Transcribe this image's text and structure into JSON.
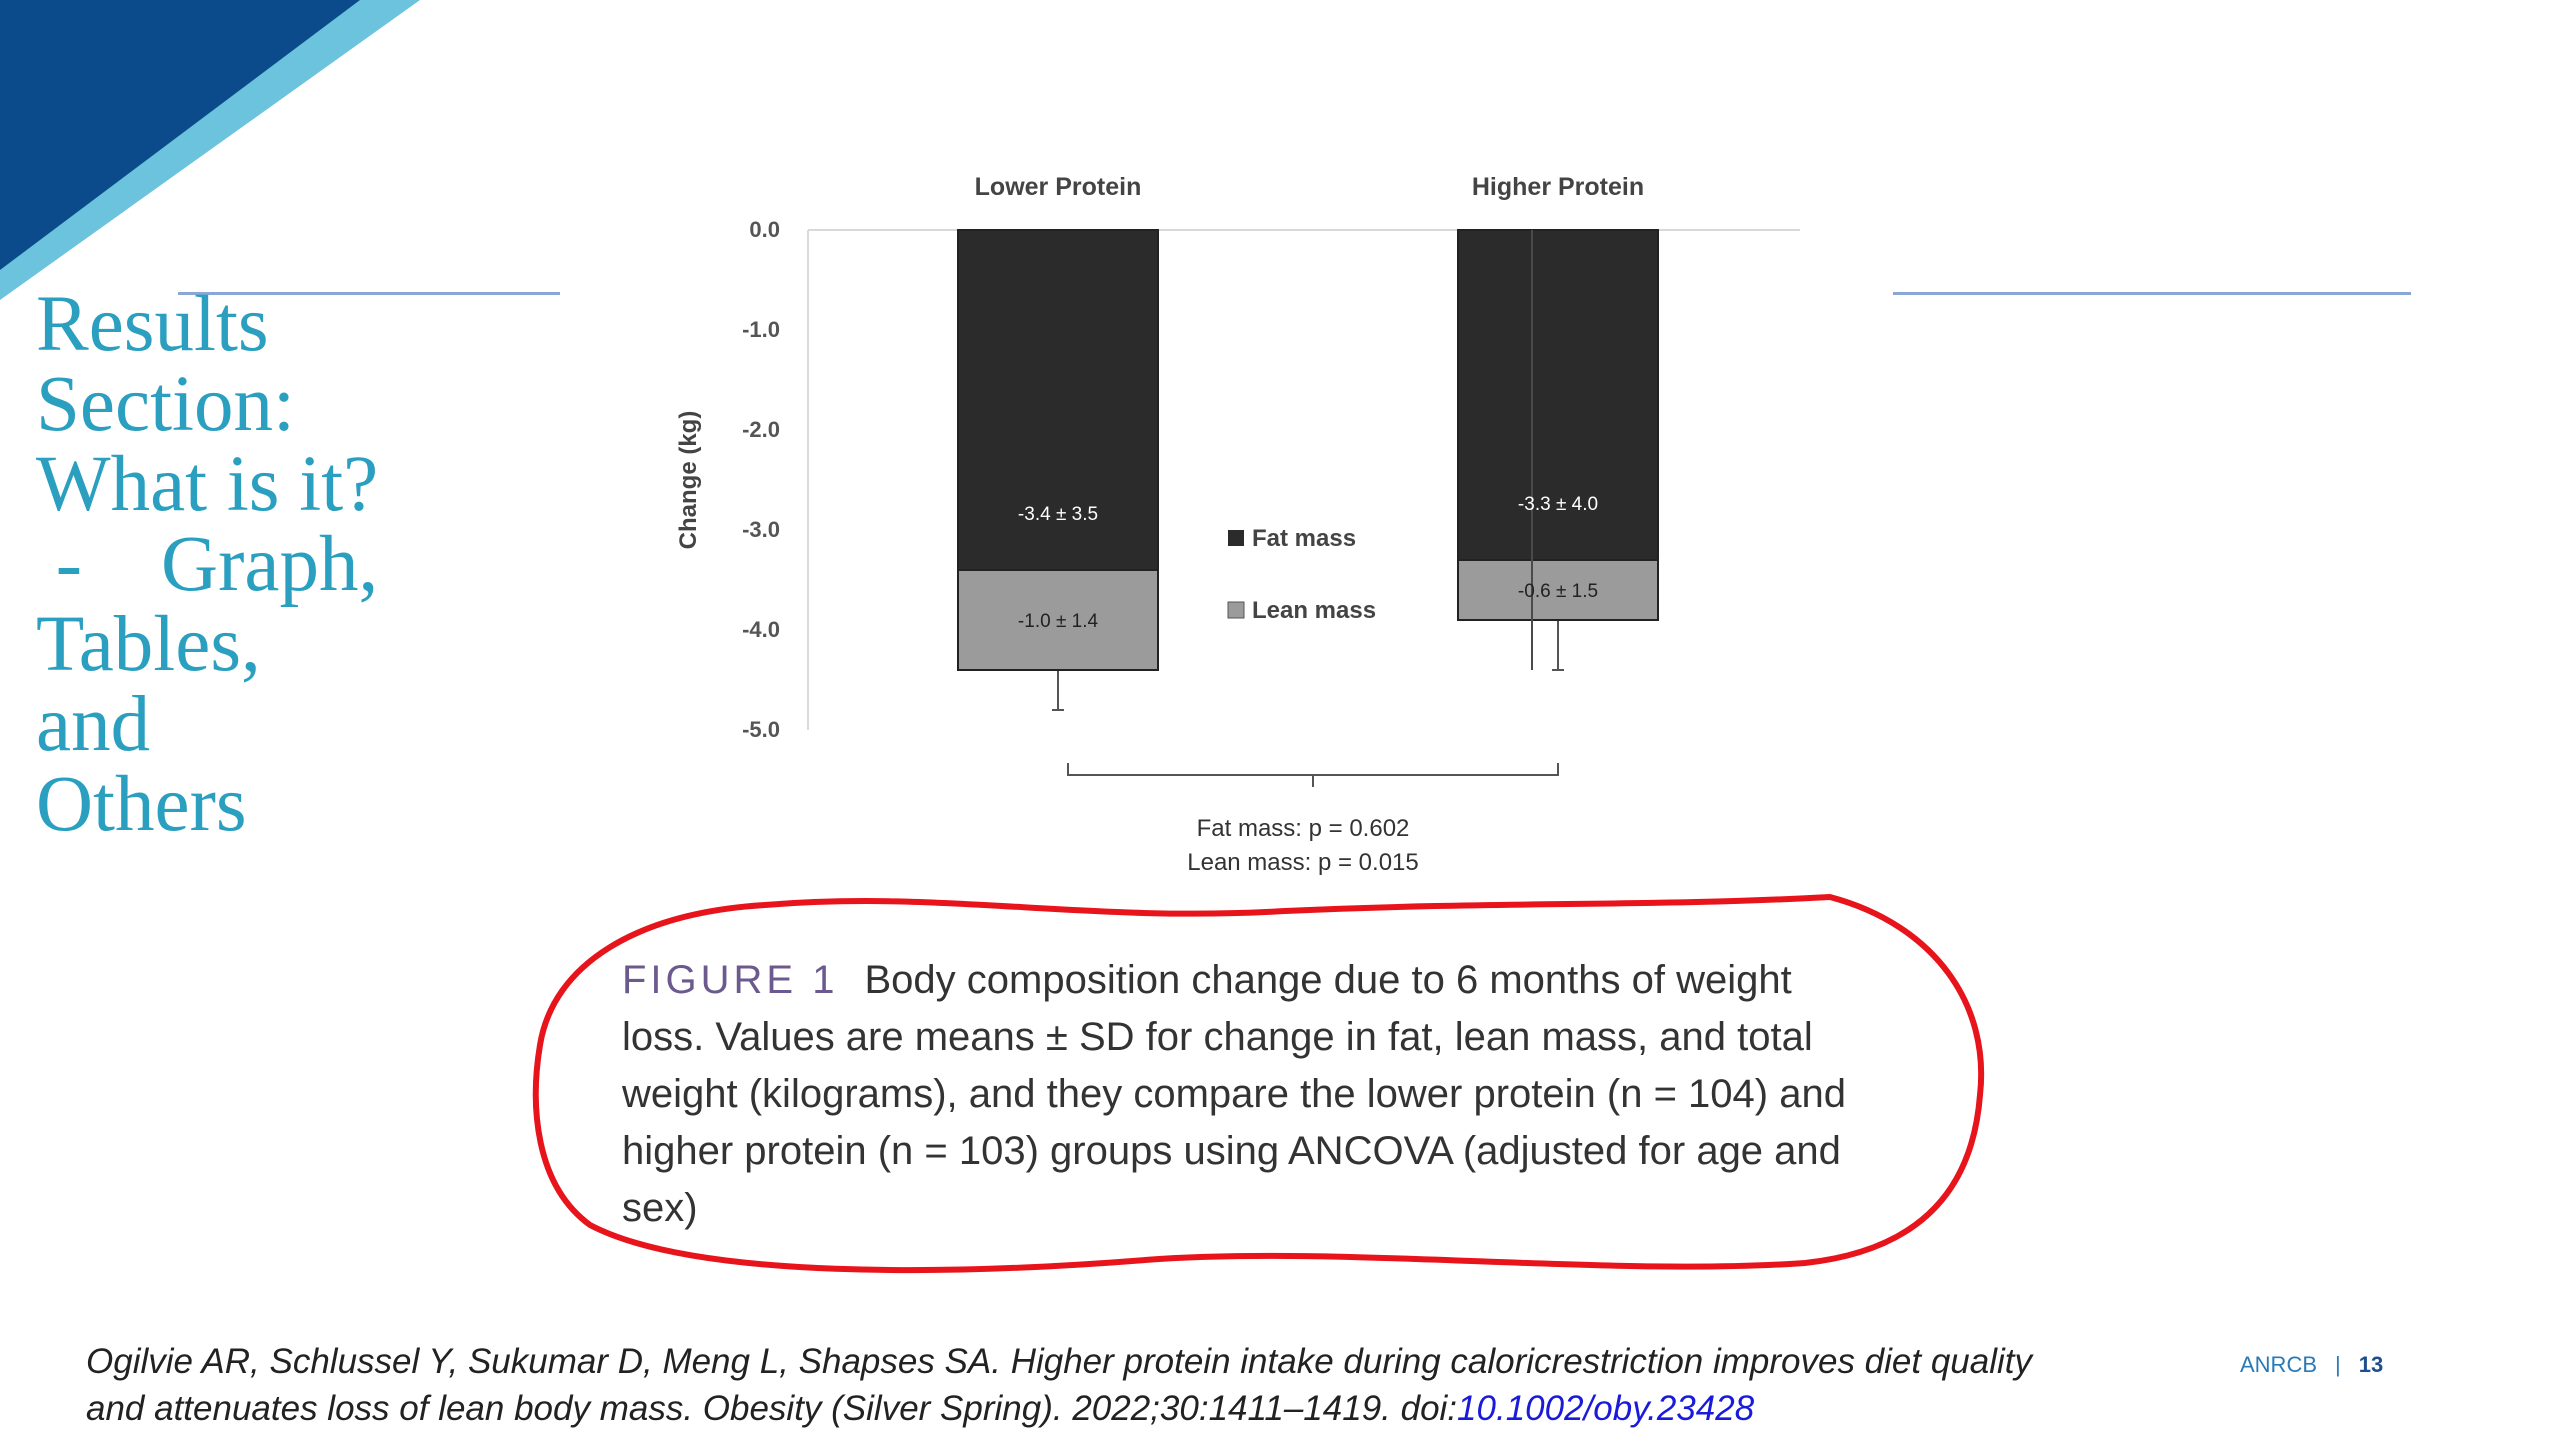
{
  "slide": {
    "title": "Results\nSection:\nWhat is it?\n -    Graph,\nTables,\nand\nOthers",
    "colors": {
      "title": "#2a9fbf",
      "corner_dark": "#0b4a8b",
      "corner_light": "#6cc3dd",
      "rule": "#8aa7d6",
      "annotation": "#e8141b"
    }
  },
  "chart_data": {
    "type": "bar",
    "stacked": true,
    "categories": [
      "Lower Protein",
      "Higher Protein"
    ],
    "ylabel": "Change (kg)",
    "ylim": [
      -5.0,
      0.0
    ],
    "yticks": [
      "0.0",
      "-1.0",
      "-2.0",
      "-3.0",
      "-4.0",
      "-5.0"
    ],
    "series": [
      {
        "name": "Fat mass",
        "values": [
          -3.4,
          -3.3
        ],
        "labels": [
          "-3.4 ± 3.5",
          "-3.3 ± 4.0"
        ],
        "color": "#2b2b2b"
      },
      {
        "name": "Lean mass",
        "values": [
          -1.0,
          -0.6
        ],
        "labels": [
          "-1.0 ± 1.4",
          "-0.6 ± 1.5"
        ],
        "color": "#9b9b9b"
      }
    ],
    "error_bar_ends": [
      -4.8,
      -4.4
    ],
    "legend_position": "center",
    "stats": [
      "Fat mass: p = 0.602",
      "Lean mass: p = 0.015"
    ]
  },
  "caption": {
    "label": "FIGURE 1",
    "text": "Body composition change due to 6 months of weight loss. Values are means ± SD for change in fat, lean mass, and total weight (kilograms), and they compare the lower protein (n = 104) and higher protein (n = 103) groups using ANCOVA (adjusted for age and sex)"
  },
  "citation": {
    "text": "Ogilvie AR, Schlussel Y, Sukumar D, Meng L, Shapses SA. Higher protein intake during caloricrestriction improves diet quality and attenuates loss of lean body mass. Obesity (Silver Spring). 2022;30:1411–1419. doi:",
    "doi": "10.1002/oby.23428"
  },
  "footer": {
    "org": "ANRCB",
    "separator": "|",
    "page": "13"
  }
}
